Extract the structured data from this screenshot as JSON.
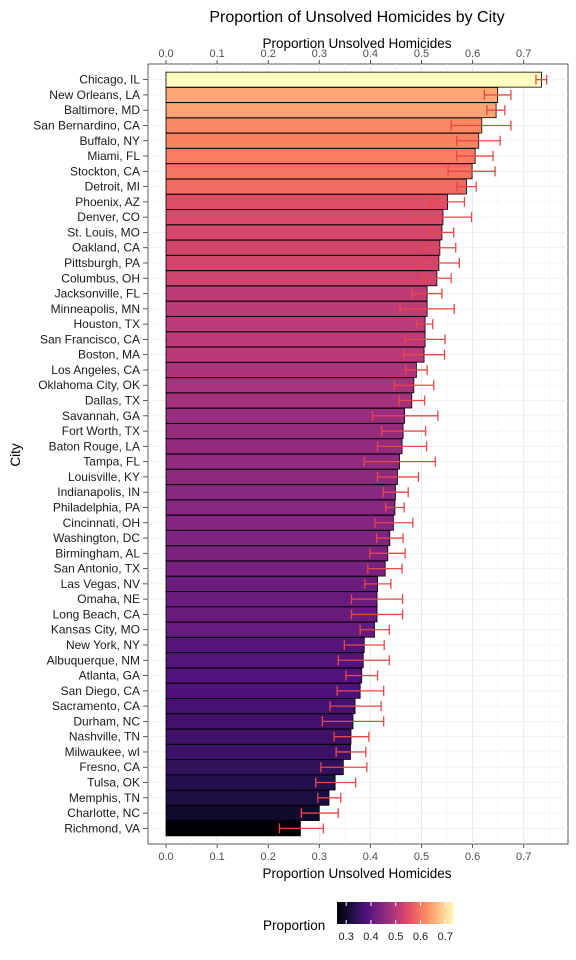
{
  "chart_data": {
    "type": "bar",
    "orientation": "horizontal",
    "title": "Proportion of Unsolved Homicides by City",
    "xlabel": "Proportion Unsolved Homicides",
    "ylabel": "City",
    "xlim": [
      0,
      0.75
    ],
    "x_ticks": [
      0.0,
      0.1,
      0.2,
      0.3,
      0.4,
      0.5,
      0.6,
      0.7
    ],
    "x_tick_labels": [
      "0.0",
      "0.1",
      "0.2",
      "0.3",
      "0.4",
      "0.5",
      "0.6",
      "0.7"
    ],
    "grid": true,
    "error_bar_color": "#E8474A",
    "legend": {
      "title": "Proportion",
      "placement": "bottom",
      "ticks": [
        "0.3",
        "0.4",
        "0.5",
        "0.6",
        "0.7"
      ],
      "tick_values": [
        0.3,
        0.4,
        0.5,
        0.6,
        0.7
      ],
      "min": 0.263,
      "max": 0.735
    },
    "categories": [
      "Chicago, IL",
      "New Orleans, LA",
      "Baltimore, MD",
      "San Bernardino, CA",
      "Buffalo, NY",
      "Miami, FL",
      "Stockton, CA",
      "Detroit, MI",
      "Phoenix, AZ",
      "Denver, CO",
      "St. Louis, MO",
      "Oakland, CA",
      "Pittsburgh, PA",
      "Columbus, OH",
      "Jacksonville, FL",
      "Minneapolis, MN",
      "Houston, TX",
      "San Francisco, CA",
      "Boston, MA",
      "Los Angeles, CA",
      "Oklahoma City, OK",
      "Dallas, TX",
      "Savannah, GA",
      "Fort Worth, TX",
      "Baton Rouge, LA",
      "Tampa, FL",
      "Louisville, KY",
      "Indianapolis, IN",
      "Philadelphia, PA",
      "Cincinnati, OH",
      "Washington, DC",
      "Birmingham, AL",
      "San Antonio, TX",
      "Las Vegas, NV",
      "Omaha, NE",
      "Long Beach, CA",
      "Kansas City, MO",
      "New York, NY",
      "Albuquerque, NM",
      "Atlanta, GA",
      "San Diego, CA",
      "Sacramento, CA",
      "Durham, NC",
      "Nashville, TN",
      "Milwaukee, wI",
      "Fresno, CA",
      "Tulsa, OK",
      "Memphis, TN",
      "Charlotte, NC",
      "Richmond, VA"
    ],
    "values": [
      0.735,
      0.649,
      0.646,
      0.618,
      0.612,
      0.605,
      0.599,
      0.588,
      0.551,
      0.542,
      0.54,
      0.536,
      0.534,
      0.53,
      0.511,
      0.511,
      0.507,
      0.507,
      0.505,
      0.49,
      0.485,
      0.481,
      0.467,
      0.464,
      0.462,
      0.457,
      0.453,
      0.449,
      0.448,
      0.445,
      0.438,
      0.434,
      0.429,
      0.414,
      0.413,
      0.413,
      0.408,
      0.388,
      0.386,
      0.383,
      0.38,
      0.37,
      0.366,
      0.362,
      0.361,
      0.347,
      0.331,
      0.319,
      0.3,
      0.263
    ],
    "ci_low": [
      0.724,
      0.623,
      0.628,
      0.558,
      0.569,
      0.569,
      0.552,
      0.569,
      0.518,
      0.485,
      0.516,
      0.504,
      0.494,
      0.502,
      0.482,
      0.458,
      0.491,
      0.468,
      0.465,
      0.469,
      0.447,
      0.456,
      0.404,
      0.422,
      0.414,
      0.388,
      0.414,
      0.425,
      0.43,
      0.409,
      0.412,
      0.399,
      0.395,
      0.389,
      0.363,
      0.363,
      0.38,
      0.349,
      0.337,
      0.352,
      0.335,
      0.321,
      0.306,
      0.329,
      0.333,
      0.303,
      0.293,
      0.297,
      0.265,
      0.222
    ],
    "ci_high": [
      0.745,
      0.675,
      0.663,
      0.675,
      0.654,
      0.64,
      0.644,
      0.607,
      0.584,
      0.598,
      0.563,
      0.567,
      0.574,
      0.558,
      0.54,
      0.564,
      0.522,
      0.546,
      0.545,
      0.511,
      0.524,
      0.506,
      0.532,
      0.508,
      0.51,
      0.527,
      0.494,
      0.474,
      0.466,
      0.483,
      0.464,
      0.468,
      0.462,
      0.44,
      0.463,
      0.463,
      0.437,
      0.427,
      0.437,
      0.414,
      0.426,
      0.421,
      0.426,
      0.397,
      0.391,
      0.393,
      0.371,
      0.342,
      0.337,
      0.308
    ]
  }
}
